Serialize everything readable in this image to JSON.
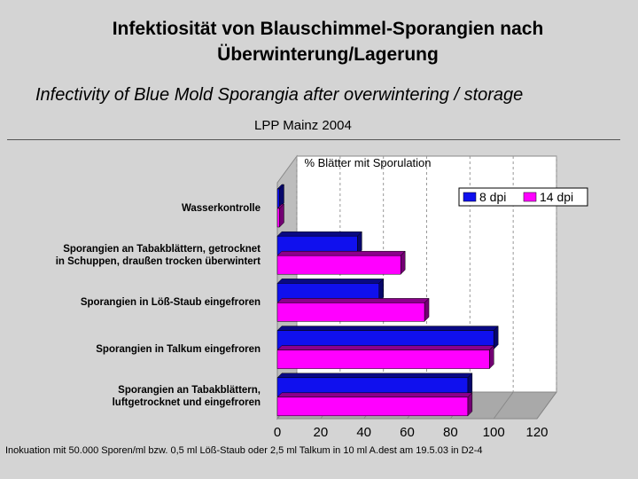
{
  "slide": {
    "title_de": "Infektiosität von Blauschimmel-Sporangien nach Überwinterung/Lagerung",
    "title_en": "Infectivity of Blue Mold Sporangia after overwintering / storage",
    "subtitle": "LPP Mainz 2004",
    "footnote": "Inokuation mit 50.000 Sporen/ml bzw. 0,5 ml Löß-Staub oder 2,5 ml Talkum in 10 ml A.dest am 19.5.03 in D2-4"
  },
  "chart_data": {
    "type": "bar",
    "orientation": "horizontal",
    "title": "% Blätter mit Sporulation",
    "categories": [
      "Wasserkontrolle",
      "Sporangien an Tabakblättern, getrocknet in Schuppen, draußen trocken überwintert",
      "Sporangien in Löß-Staub eingefroren",
      "Sporangien in Talkum eingefroren",
      "Sporangien an Tabakblättern, luftgetrocknet und eingefroren"
    ],
    "category_lines": [
      [
        "Wasserkontrolle"
      ],
      [
        "Sporangien an Tabakblättern, getrocknet",
        "in Schuppen, draußen trocken überwintert"
      ],
      [
        "Sporangien in Löß-Staub eingefroren"
      ],
      [
        "Sporangien in Talkum eingefroren"
      ],
      [
        "Sporangien an Tabakblättern,",
        "luftgetrocknet und eingefroren"
      ]
    ],
    "series": [
      {
        "name": "8 dpi",
        "color": "#1010ee",
        "values": [
          1,
          37,
          47,
          100,
          88
        ]
      },
      {
        "name": "14 dpi",
        "color": "#ff00ff",
        "values": [
          1,
          57,
          68,
          98,
          88
        ]
      }
    ],
    "xlim": [
      0,
      120
    ],
    "xticks": [
      "0",
      "20",
      "40",
      "60",
      "80",
      "100",
      "120"
    ],
    "grid": true,
    "legend_position": "top-right"
  }
}
